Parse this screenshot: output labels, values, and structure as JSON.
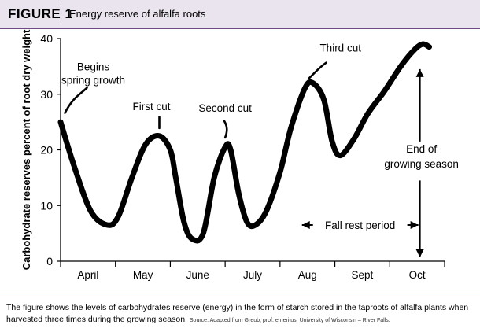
{
  "figure": {
    "label": "FIGURE 1",
    "title": "Energy reserve of alfalfa roots"
  },
  "caption": {
    "text": "The figure shows the levels of carbohydrates reserve (energy) in the form of starch stored in the taproots of alfalfa plants when harvested three times during the growing season.",
    "source": "Source: Adapted from Greub, prof. emeritus, University of Wisconsin – River Falls."
  },
  "colors": {
    "accent": "#6b4a86",
    "header_bg": "#e9e4ee",
    "line": "#000000"
  },
  "chart_data": {
    "type": "line",
    "title": "",
    "ylabel": "Carbohydrate reserves percent of root dry weight",
    "xlabel": "",
    "ylim": [
      0,
      40
    ],
    "yticks": [
      0,
      10,
      20,
      30,
      40
    ],
    "xlim": [
      0,
      7
    ],
    "categories": [
      "April",
      "May",
      "June",
      "July",
      "Aug",
      "Sept",
      "Oct"
    ],
    "grid": false,
    "series": [
      {
        "name": "",
        "x": [
          0.0,
          0.25,
          0.55,
          0.85,
          1.05,
          1.3,
          1.55,
          1.8,
          2.0,
          2.1,
          2.25,
          2.4,
          2.6,
          2.8,
          3.0,
          3.1,
          3.25,
          3.4,
          3.55,
          3.75,
          4.0,
          4.2,
          4.45,
          4.6,
          4.8,
          4.95,
          5.1,
          5.35,
          5.6,
          5.9,
          6.2,
          6.45,
          6.6,
          6.72
        ],
        "y": [
          25,
          17,
          9,
          6.5,
          8,
          15,
          21,
          22.5,
          20,
          15,
          7,
          4,
          5,
          15,
          20.5,
          20,
          12,
          7,
          6.5,
          9,
          16,
          24,
          31,
          32,
          29,
          21.5,
          19,
          22,
          26.5,
          30.5,
          35,
          38,
          39,
          38.5
        ]
      }
    ],
    "annotations": [
      {
        "id": "begins",
        "lines": [
          "Begins",
          "spring growth"
        ],
        "x": 0.05,
        "y": 25.5
      },
      {
        "id": "first",
        "lines": [
          "First cut"
        ],
        "x": 1.8,
        "y": 22.5
      },
      {
        "id": "second",
        "lines": [
          "Second cut"
        ],
        "x": 3.0,
        "y": 20.5
      },
      {
        "id": "third",
        "lines": [
          "Third cut"
        ],
        "x": 4.5,
        "y": 32
      },
      {
        "id": "end",
        "lines": [
          "End of",
          "growing season"
        ]
      },
      {
        "id": "fall",
        "lines": [
          "Fall rest period"
        ]
      }
    ],
    "fall_rest_start_x": 4.4,
    "season_end_x": 6.55
  }
}
